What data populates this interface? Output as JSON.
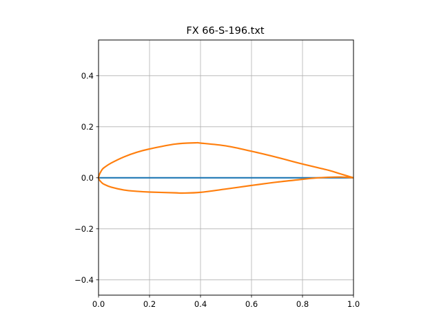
{
  "chart_data": {
    "type": "line",
    "title": "FX 66-S-196.txt",
    "xlabel": "",
    "ylabel": "",
    "xlim": [
      0.0,
      1.0
    ],
    "ylim": [
      -0.46,
      0.54
    ],
    "grid": true,
    "legend": "none",
    "x_ticks": [
      "0.0",
      "0.2",
      "0.4",
      "0.6",
      "0.8",
      "1.0"
    ],
    "y_ticks": [
      "−0.4",
      "−0.2",
      "0.0",
      "0.2",
      "0.4"
    ],
    "x_tick_values": [
      0.0,
      0.2,
      0.4,
      0.6,
      0.8,
      1.0
    ],
    "y_tick_values": [
      -0.4,
      -0.2,
      0.0,
      0.2,
      0.4
    ],
    "series": [
      {
        "color": "#1f77b4",
        "x": [
          0.0,
          1.0
        ],
        "y": [
          0.0,
          0.0
        ]
      },
      {
        "color": "#ff7f0e",
        "x": [
          1.0,
          0.95,
          0.9,
          0.8,
          0.7,
          0.6,
          0.5,
          0.4,
          0.38,
          0.3,
          0.2,
          0.15,
          0.1,
          0.05,
          0.025,
          0.0125,
          0.0,
          0.0125,
          0.025,
          0.05,
          0.1,
          0.15,
          0.2,
          0.3,
          0.33,
          0.4,
          0.5,
          0.6,
          0.7,
          0.8,
          0.85,
          0.9,
          0.95,
          1.0
        ],
        "y": [
          0.0,
          0.015,
          0.03,
          0.054,
          0.08,
          0.104,
          0.125,
          0.136,
          0.137,
          0.132,
          0.113,
          0.1,
          0.082,
          0.058,
          0.042,
          0.03,
          0.0,
          -0.019,
          -0.027,
          -0.037,
          -0.048,
          -0.053,
          -0.056,
          -0.059,
          -0.06,
          -0.057,
          -0.044,
          -0.03,
          -0.017,
          -0.006,
          -0.001,
          0.002,
          0.003,
          0.0
        ]
      }
    ]
  }
}
